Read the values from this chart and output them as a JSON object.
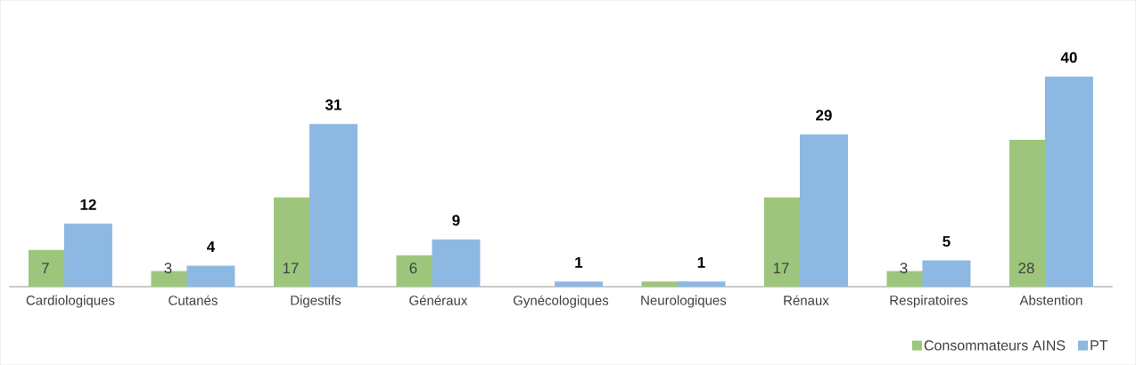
{
  "chart_data": {
    "type": "bar",
    "categories": [
      "Cardiologiques",
      "Cutanés",
      "Digestifs",
      "Généraux",
      "Gynécologiques",
      "Neurologiques",
      "Rénaux",
      "Respiratoires",
      "Abstention"
    ],
    "series": [
      {
        "name": "Consommateurs AINS",
        "color": "#9dc67c",
        "values": [
          7,
          3,
          17,
          6,
          0,
          1,
          17,
          3,
          28
        ],
        "value_labels": [
          "7",
          "3",
          "17",
          "6",
          null,
          null,
          "17",
          "3",
          "28"
        ]
      },
      {
        "name": "PT",
        "color": "#8db8e2",
        "values": [
          12,
          4,
          31,
          9,
          1,
          1,
          29,
          5,
          40
        ],
        "value_labels": [
          "12",
          "4",
          "31",
          "9",
          "1",
          "1",
          "29",
          "5",
          "40"
        ]
      }
    ],
    "legend": "bottom right"
  }
}
